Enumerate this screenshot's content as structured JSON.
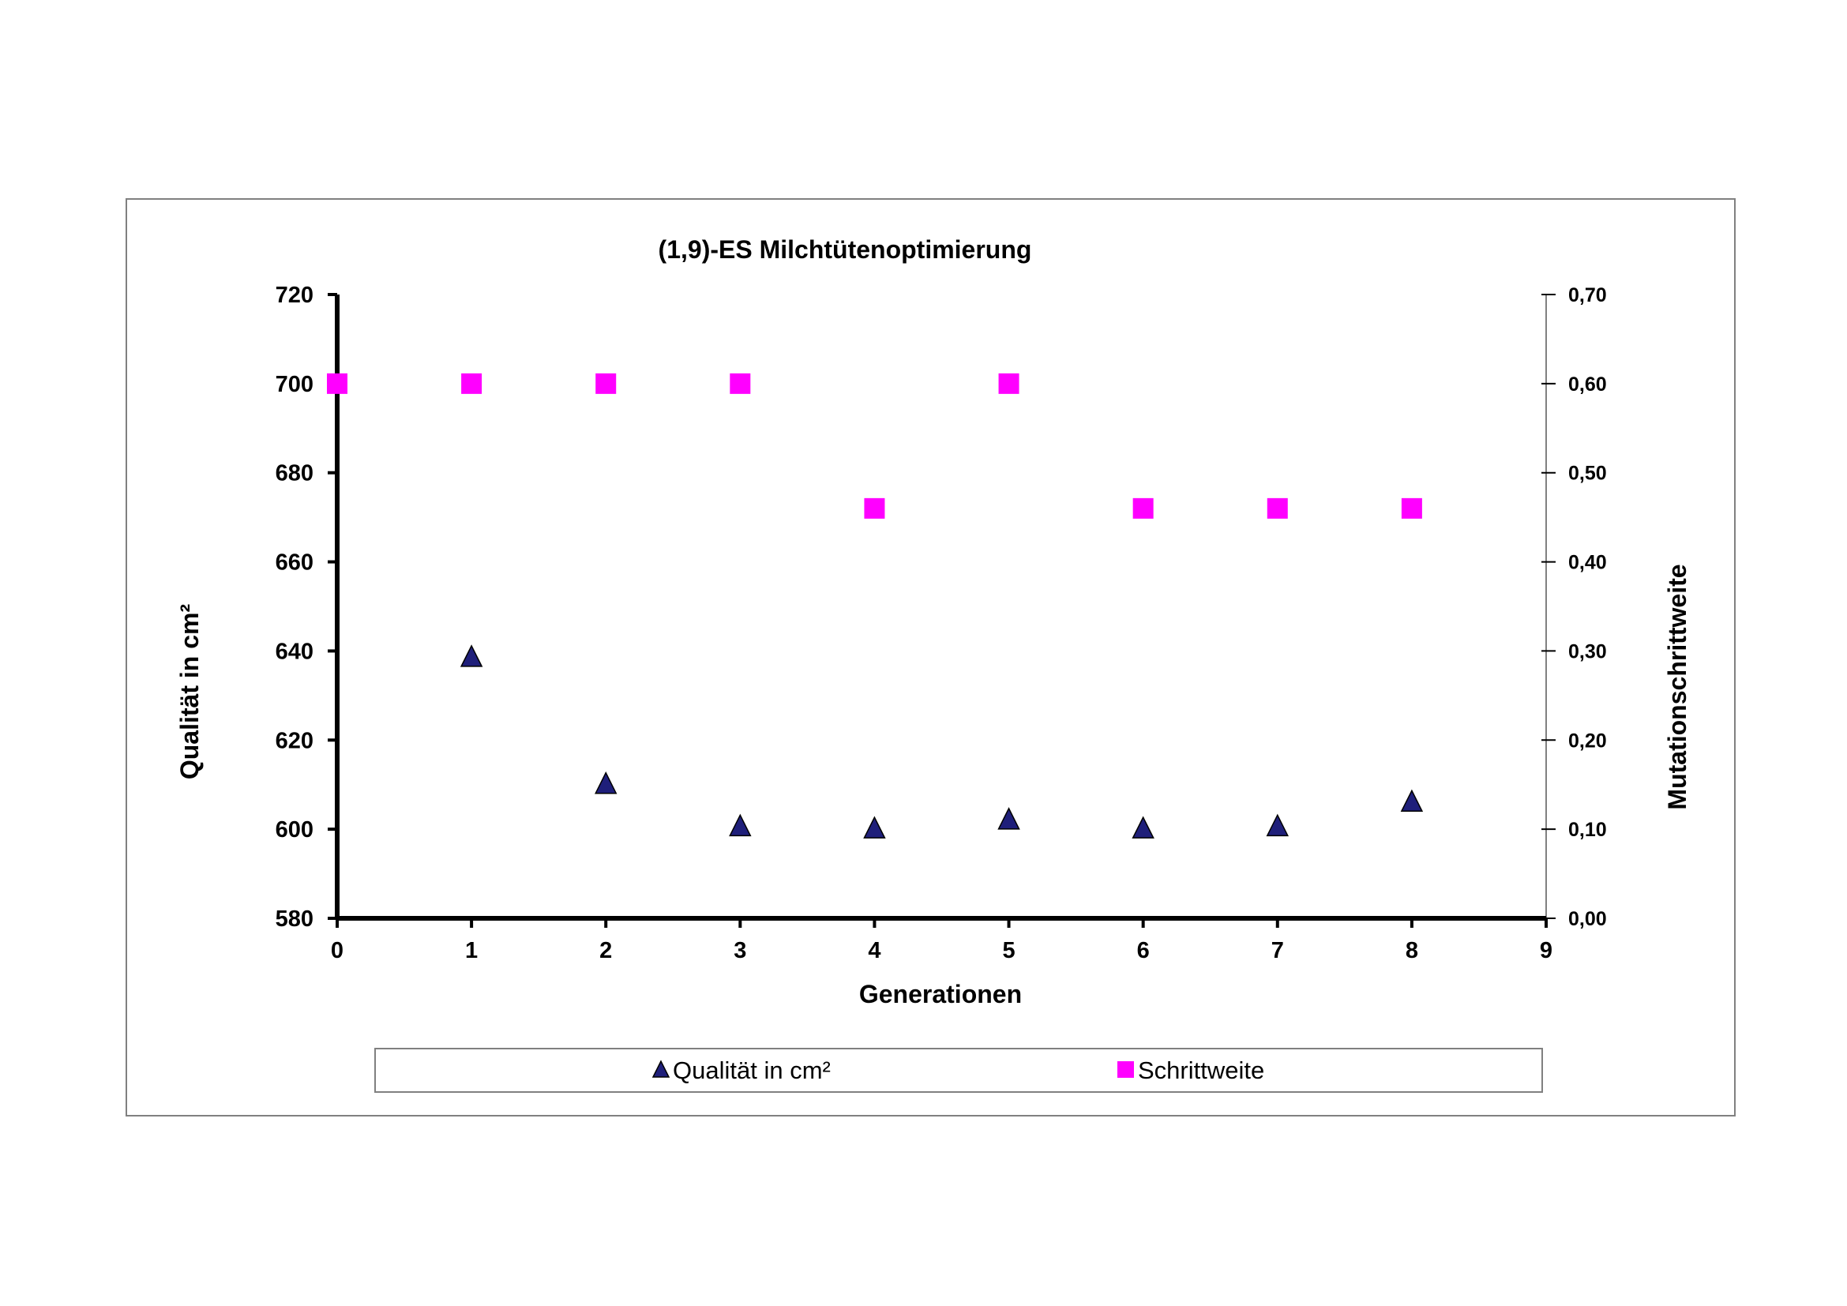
{
  "chart_data": {
    "type": "scatter",
    "title": "(1,9)-ES Milchtütenoptimierung",
    "xlabel": "Generationen",
    "ylabel": "Qualität in cm²",
    "y2label": "Mutationschrittweite",
    "xlim": [
      0,
      9
    ],
    "ylim": [
      580,
      720
    ],
    "y2lim": [
      0.0,
      0.7
    ],
    "xticks": [
      "0",
      "1",
      "2",
      "3",
      "4",
      "5",
      "6",
      "7",
      "8",
      "9"
    ],
    "yticks": [
      "580",
      "600",
      "620",
      "640",
      "660",
      "680",
      "700",
      "720"
    ],
    "y2ticks": [
      "0,00",
      "0,10",
      "0,20",
      "0,30",
      "0,40",
      "0,50",
      "0,60",
      "0,70"
    ],
    "grid": false,
    "legend_position": "bottom",
    "series": [
      {
        "name": "Qualität in cm²",
        "axis": "left",
        "marker": "triangle",
        "color": "#1F1F7A",
        "x": [
          1,
          2,
          3,
          4,
          5,
          6,
          7,
          8
        ],
        "y": [
          638.5,
          610,
          600.5,
          600,
          602,
          600,
          600.5,
          606
        ]
      },
      {
        "name": "Schrittweite",
        "axis": "right",
        "marker": "square",
        "color": "#FF00FF",
        "x": [
          0,
          1,
          2,
          3,
          4,
          5,
          6,
          7,
          8
        ],
        "y": [
          0.6,
          0.6,
          0.6,
          0.6,
          0.46,
          0.6,
          0.46,
          0.46,
          0.46
        ]
      }
    ]
  }
}
